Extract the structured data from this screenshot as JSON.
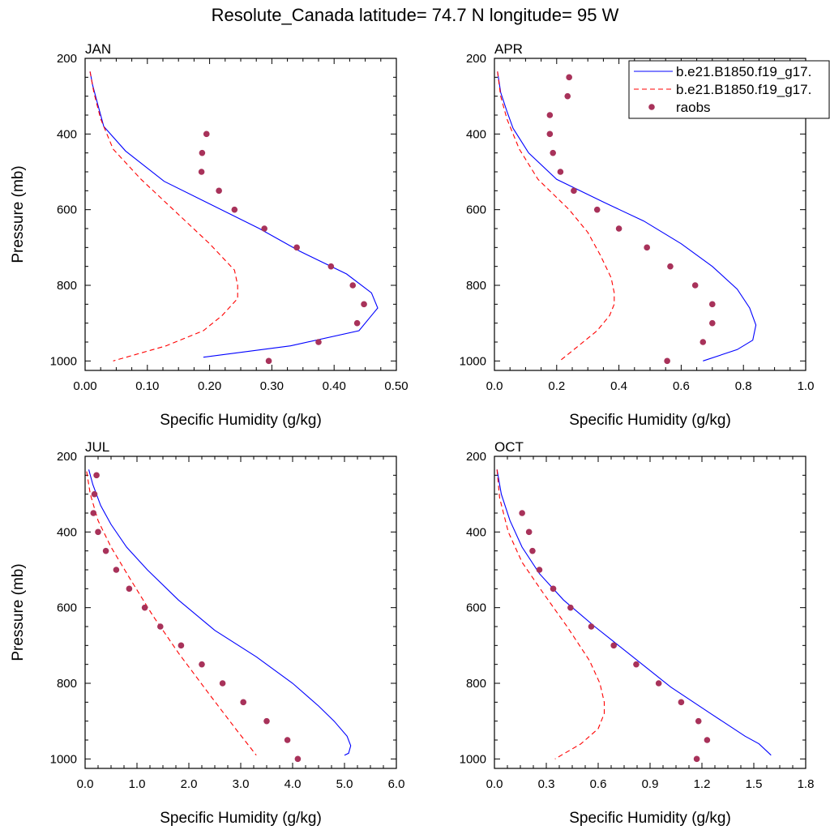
{
  "title": "Resolute_Canada  latitude= 74.7 N longitude= 95 W",
  "colors": {
    "model1": "#0000ff",
    "model2": "#ff0000",
    "obs": "#a8325a",
    "axis": "#000000"
  },
  "legend": {
    "entries": [
      {
        "label": "b.e21.B1850.f19_g17.",
        "style": "solid"
      },
      {
        "label": "b.e21.B1850.f19_g17.",
        "style": "dashed"
      },
      {
        "label": "raobs",
        "style": "marker"
      }
    ]
  },
  "chart_data": [
    {
      "type": "line",
      "panel": "JAN",
      "xlabel": "Specific Humidity (g/kg)",
      "ylabel": "Pressure (mb)",
      "xlim": [
        0,
        0.5
      ],
      "ylim": [
        1025,
        200
      ],
      "xticks": [
        "0.00",
        "0.10",
        "0.20",
        "0.30",
        "0.40",
        "0.50"
      ],
      "xtick_values": [
        0,
        0.1,
        0.2,
        0.3,
        0.4,
        0.5
      ],
      "yticks": [
        "200",
        "400",
        "600",
        "800",
        "1000"
      ],
      "ytick_values": [
        200,
        400,
        600,
        800,
        1000
      ],
      "series": [
        {
          "name": "b.e21.B1850.f19_g17.",
          "style": "solid",
          "points": [
            [
              0.008,
              235
            ],
            [
              0.012,
              270
            ],
            [
              0.02,
              320
            ],
            [
              0.03,
              380
            ],
            [
              0.065,
              445
            ],
            [
              0.127,
              525
            ],
            [
              0.28,
              650
            ],
            [
              0.345,
              710
            ],
            [
              0.42,
              770
            ],
            [
              0.46,
              820
            ],
            [
              0.47,
              860
            ],
            [
              0.46,
              880
            ],
            [
              0.44,
              920
            ],
            [
              0.33,
              960
            ],
            [
              0.19,
              990
            ]
          ]
        },
        {
          "name": "b.e21.B1850.f19_g17.",
          "style": "dashed",
          "points": [
            [
              0.008,
              235
            ],
            [
              0.014,
              290
            ],
            [
              0.025,
              360
            ],
            [
              0.045,
              440
            ],
            [
              0.09,
              520
            ],
            [
              0.2,
              690
            ],
            [
              0.24,
              760
            ],
            [
              0.245,
              800
            ],
            [
              0.245,
              835
            ],
            [
              0.22,
              880
            ],
            [
              0.19,
              920
            ],
            [
              0.13,
              960
            ],
            [
              0.045,
              1000
            ]
          ]
        },
        {
          "name": "raobs",
          "style": "marker",
          "points": [
            [
              0.195,
              400
            ],
            [
              0.188,
              450
            ],
            [
              0.187,
              500
            ],
            [
              0.215,
              550
            ],
            [
              0.24,
              600
            ],
            [
              0.288,
              650
            ],
            [
              0.34,
              700
            ],
            [
              0.395,
              750
            ],
            [
              0.43,
              800
            ],
            [
              0.448,
              850
            ],
            [
              0.437,
              900
            ],
            [
              0.375,
              950
            ],
            [
              0.295,
              1000
            ]
          ]
        }
      ]
    },
    {
      "type": "line",
      "panel": "APR",
      "xlabel": "Specific Humidity (g/kg)",
      "ylabel": "",
      "xlim": [
        0,
        1.0
      ],
      "ylim": [
        1025,
        200
      ],
      "xticks": [
        "0.0",
        "0.2",
        "0.4",
        "0.6",
        "0.8",
        "1.0"
      ],
      "xtick_values": [
        0,
        0.2,
        0.4,
        0.6,
        0.8,
        1.0
      ],
      "yticks": [
        "200",
        "400",
        "600",
        "800",
        "1000"
      ],
      "ytick_values": [
        200,
        400,
        600,
        800,
        1000
      ],
      "series": [
        {
          "name": "b.e21.B1850.f19_g17.",
          "style": "solid",
          "points": [
            [
              0.01,
              235
            ],
            [
              0.02,
              290
            ],
            [
              0.04,
              340
            ],
            [
              0.06,
              385
            ],
            [
              0.11,
              450
            ],
            [
              0.2,
              520
            ],
            [
              0.35,
              580
            ],
            [
              0.48,
              630
            ],
            [
              0.6,
              690
            ],
            [
              0.7,
              750
            ],
            [
              0.78,
              810
            ],
            [
              0.82,
              860
            ],
            [
              0.84,
              905
            ],
            [
              0.83,
              945
            ],
            [
              0.78,
              970
            ],
            [
              0.67,
              1000
            ]
          ]
        },
        {
          "name": "b.e21.B1850.f19_g17.",
          "style": "dashed",
          "points": [
            [
              0.01,
              235
            ],
            [
              0.02,
              300
            ],
            [
              0.04,
              360
            ],
            [
              0.08,
              440
            ],
            [
              0.14,
              520
            ],
            [
              0.24,
              600
            ],
            [
              0.3,
              660
            ],
            [
              0.34,
              720
            ],
            [
              0.375,
              780
            ],
            [
              0.385,
              820
            ],
            [
              0.385,
              850
            ],
            [
              0.37,
              880
            ],
            [
              0.33,
              920
            ],
            [
              0.27,
              960
            ],
            [
              0.21,
              1000
            ]
          ]
        },
        {
          "name": "raobs",
          "style": "marker",
          "points": [
            [
              0.24,
              250
            ],
            [
              0.235,
              300
            ],
            [
              0.178,
              350
            ],
            [
              0.178,
              400
            ],
            [
              0.188,
              450
            ],
            [
              0.212,
              500
            ],
            [
              0.255,
              550
            ],
            [
              0.33,
              600
            ],
            [
              0.4,
              650
            ],
            [
              0.49,
              700
            ],
            [
              0.565,
              750
            ],
            [
              0.645,
              800
            ],
            [
              0.7,
              850
            ],
            [
              0.7,
              900
            ],
            [
              0.67,
              950
            ],
            [
              0.555,
              1000
            ]
          ]
        }
      ]
    },
    {
      "type": "line",
      "panel": "JUL",
      "xlabel": "Specific Humidity (g/kg)",
      "ylabel": "Pressure (mb)",
      "xlim": [
        0,
        6.0
      ],
      "ylim": [
        1025,
        200
      ],
      "xticks": [
        "0.0",
        "1.0",
        "2.0",
        "3.0",
        "4.0",
        "5.0",
        "6.0"
      ],
      "xtick_values": [
        0,
        1,
        2,
        3,
        4,
        5,
        6
      ],
      "yticks": [
        "200",
        "400",
        "600",
        "800",
        "1000"
      ],
      "ytick_values": [
        200,
        400,
        600,
        800,
        1000
      ],
      "series": [
        {
          "name": "b.e21.B1850.f19_g17.",
          "style": "solid",
          "points": [
            [
              0.07,
              235
            ],
            [
              0.15,
              275
            ],
            [
              0.3,
              330
            ],
            [
              0.5,
              380
            ],
            [
              0.8,
              440
            ],
            [
              1.2,
              500
            ],
            [
              1.8,
              580
            ],
            [
              2.5,
              660
            ],
            [
              3.3,
              730
            ],
            [
              4.0,
              800
            ],
            [
              4.5,
              860
            ],
            [
              4.8,
              900
            ],
            [
              5.05,
              940
            ],
            [
              5.12,
              965
            ],
            [
              5.08,
              985
            ],
            [
              5.0,
              990
            ]
          ]
        },
        {
          "name": "b.e21.B1850.f19_g17.",
          "style": "dashed",
          "points": [
            [
              0.03,
              240
            ],
            [
              0.1,
              300
            ],
            [
              0.25,
              370
            ],
            [
              0.5,
              440
            ],
            [
              0.85,
              520
            ],
            [
              1.3,
              620
            ],
            [
              1.8,
              720
            ],
            [
              2.4,
              830
            ],
            [
              2.9,
              920
            ],
            [
              3.3,
              990
            ]
          ]
        },
        {
          "name": "raobs",
          "style": "marker",
          "points": [
            [
              0.22,
              250
            ],
            [
              0.18,
              300
            ],
            [
              0.16,
              350
            ],
            [
              0.25,
              400
            ],
            [
              0.4,
              450
            ],
            [
              0.6,
              500
            ],
            [
              0.85,
              550
            ],
            [
              1.15,
              600
            ],
            [
              1.45,
              650
            ],
            [
              1.85,
              700
            ],
            [
              2.25,
              750
            ],
            [
              2.65,
              800
            ],
            [
              3.05,
              850
            ],
            [
              3.5,
              900
            ],
            [
              3.9,
              950
            ],
            [
              4.1,
              1000
            ]
          ]
        }
      ]
    },
    {
      "type": "line",
      "panel": "OCT",
      "xlabel": "Specific Humidity (g/kg)",
      "ylabel": "",
      "xlim": [
        0,
        1.8
      ],
      "ylim": [
        1025,
        200
      ],
      "xticks": [
        "0.0",
        "0.3",
        "0.6",
        "0.9",
        "1.2",
        "1.5",
        "1.8"
      ],
      "xtick_values": [
        0,
        0.3,
        0.6,
        0.9,
        1.2,
        1.5,
        1.8
      ],
      "yticks": [
        "200",
        "400",
        "600",
        "800",
        "1000"
      ],
      "ytick_values": [
        200,
        400,
        600,
        800,
        1000
      ],
      "series": [
        {
          "name": "b.e21.B1850.f19_g17.",
          "style": "solid",
          "points": [
            [
              0.015,
              235
            ],
            [
              0.04,
              300
            ],
            [
              0.09,
              370
            ],
            [
              0.16,
              440
            ],
            [
              0.26,
              510
            ],
            [
              0.4,
              580
            ],
            [
              0.58,
              650
            ],
            [
              0.8,
              730
            ],
            [
              1.02,
              810
            ],
            [
              1.25,
              880
            ],
            [
              1.45,
              940
            ],
            [
              1.53,
              960
            ],
            [
              1.6,
              990
            ]
          ]
        },
        {
          "name": "b.e21.B1850.f19_g17.",
          "style": "dashed",
          "points": [
            [
              0.015,
              235
            ],
            [
              0.03,
              310
            ],
            [
              0.08,
              400
            ],
            [
              0.16,
              480
            ],
            [
              0.28,
              560
            ],
            [
              0.42,
              650
            ],
            [
              0.55,
              740
            ],
            [
              0.61,
              800
            ],
            [
              0.635,
              850
            ],
            [
              0.635,
              880
            ],
            [
              0.6,
              920
            ],
            [
              0.5,
              960
            ],
            [
              0.35,
              1000
            ]
          ]
        },
        {
          "name": "raobs",
          "style": "marker",
          "points": [
            [
              0.16,
              350
            ],
            [
              0.2,
              400
            ],
            [
              0.22,
              450
            ],
            [
              0.26,
              500
            ],
            [
              0.34,
              550
            ],
            [
              0.44,
              600
            ],
            [
              0.56,
              650
            ],
            [
              0.69,
              700
            ],
            [
              0.82,
              750
            ],
            [
              0.95,
              800
            ],
            [
              1.08,
              850
            ],
            [
              1.18,
              900
            ],
            [
              1.23,
              950
            ],
            [
              1.17,
              1000
            ]
          ]
        }
      ]
    }
  ]
}
